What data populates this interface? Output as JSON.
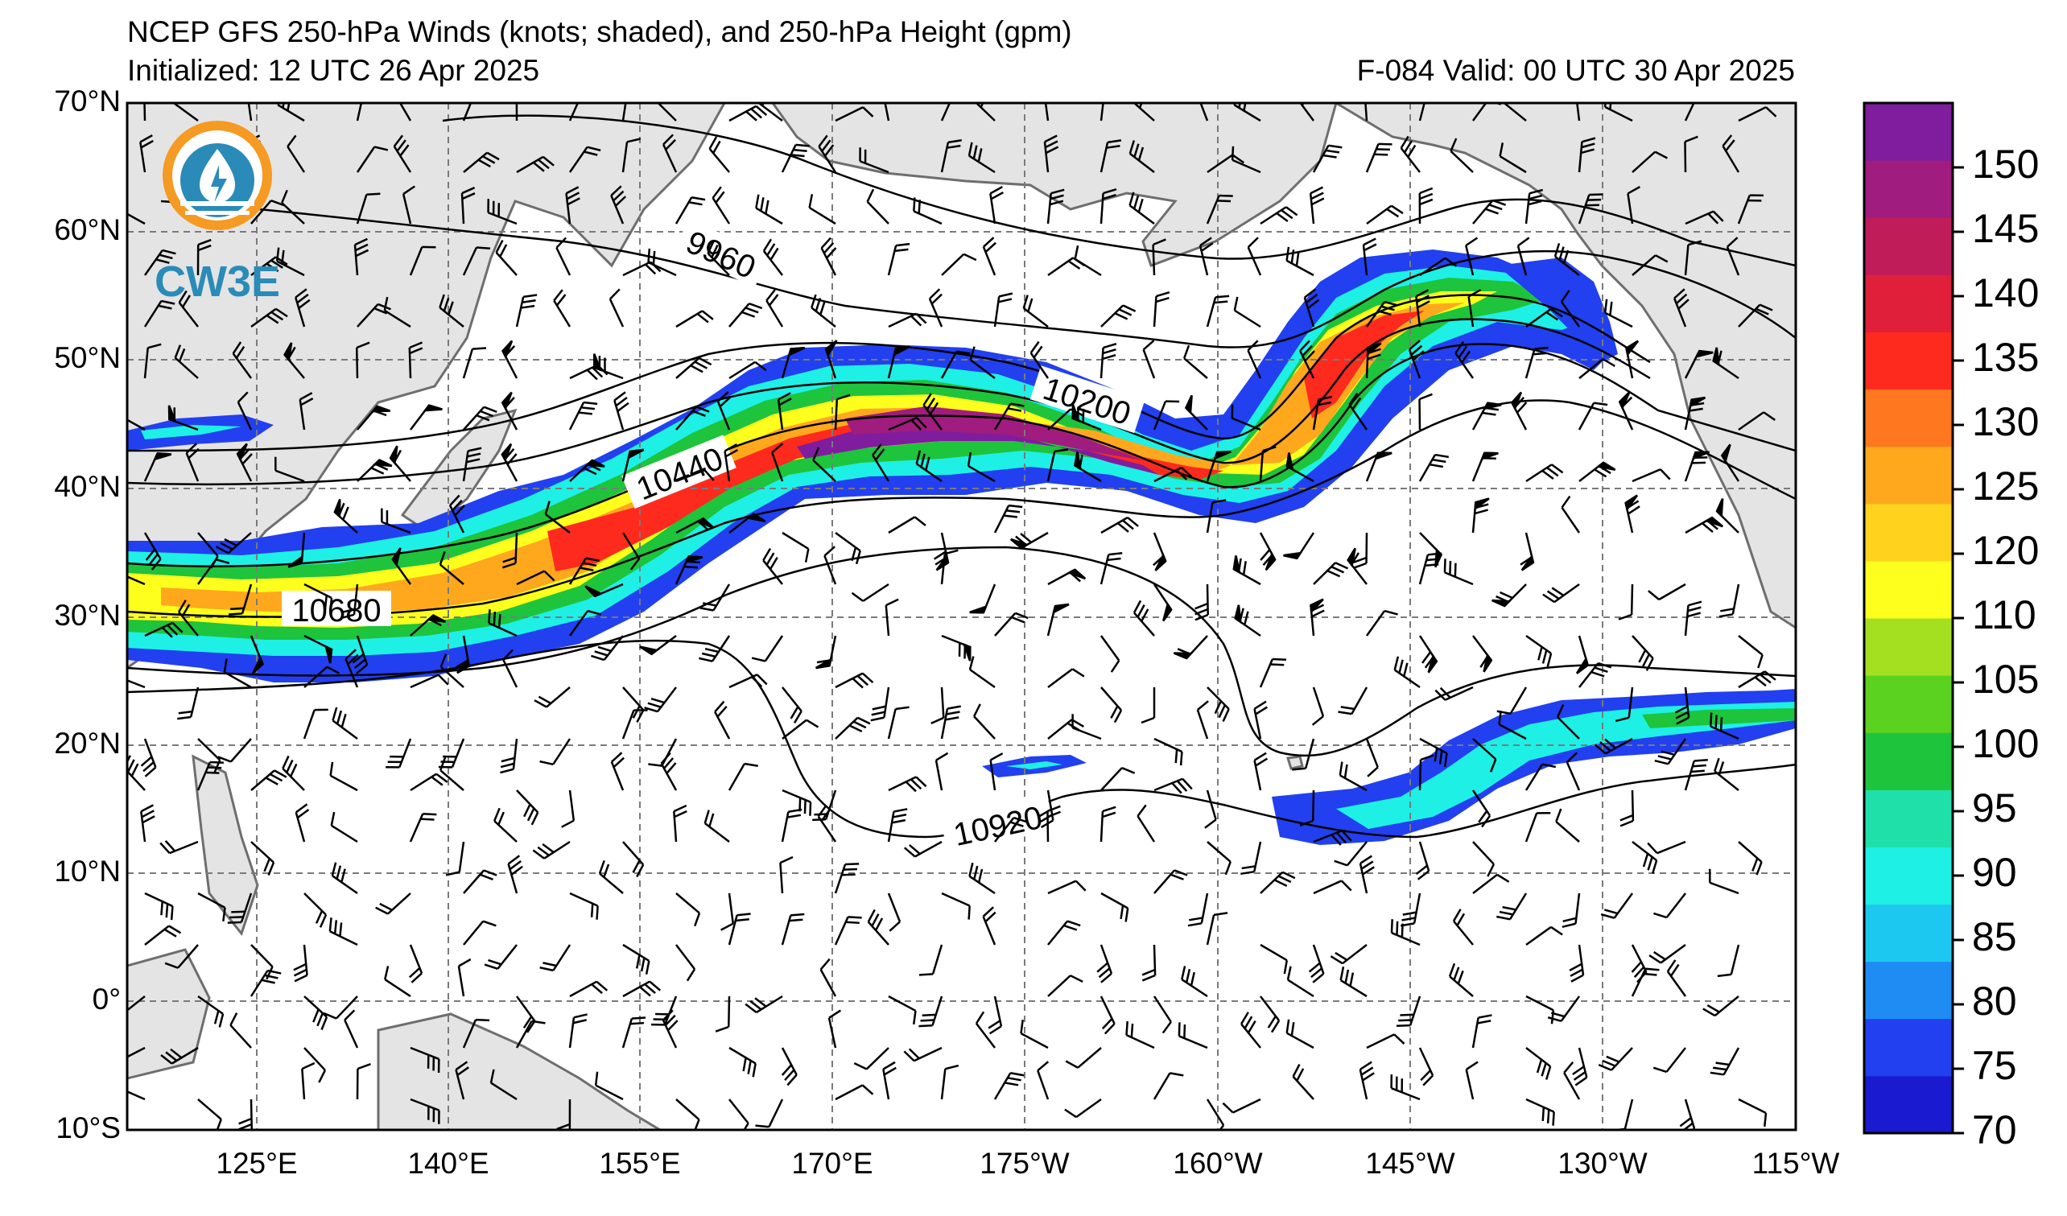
{
  "title": "NCEP GFS 250-hPa Winds (knots; shaded), and 250-hPa Height (gpm)",
  "initialized": "Initialized: 12 UTC 26 Apr 2025",
  "valid": "F-084  Valid: 00 UTC 30 Apr 2025",
  "logo": {
    "text": "CW3E"
  },
  "lat_labels": [
    "70°N",
    "60°N",
    "50°N",
    "40°N",
    "30°N",
    "20°N",
    "10°N",
    "0°",
    "10°S"
  ],
  "lon_labels": [
    "125°E",
    "140°E",
    "155°E",
    "170°E",
    "175°W",
    "160°W",
    "145°W",
    "130°W",
    "115°W"
  ],
  "contour_labels": [
    "9960",
    "10200",
    "10440",
    "10680",
    "10920"
  ],
  "colorbar": {
    "tick_labels": [
      "70",
      "75",
      "80",
      "85",
      "90",
      "95",
      "100",
      "105",
      "110",
      "120",
      "125",
      "130",
      "135",
      "140",
      "145",
      "150"
    ],
    "colors": [
      "#1a1ad0",
      "#2240f0",
      "#1e8cf2",
      "#1cc8f0",
      "#1ef0e6",
      "#1ee0a8",
      "#1ec43c",
      "#5cd220",
      "#a4e020",
      "#ffff1e",
      "#ffd21e",
      "#ffa81e",
      "#ff7820",
      "#ff2a1e",
      "#e0203a",
      "#c01c5a",
      "#a01c7e",
      "#801c9e"
    ]
  }
}
